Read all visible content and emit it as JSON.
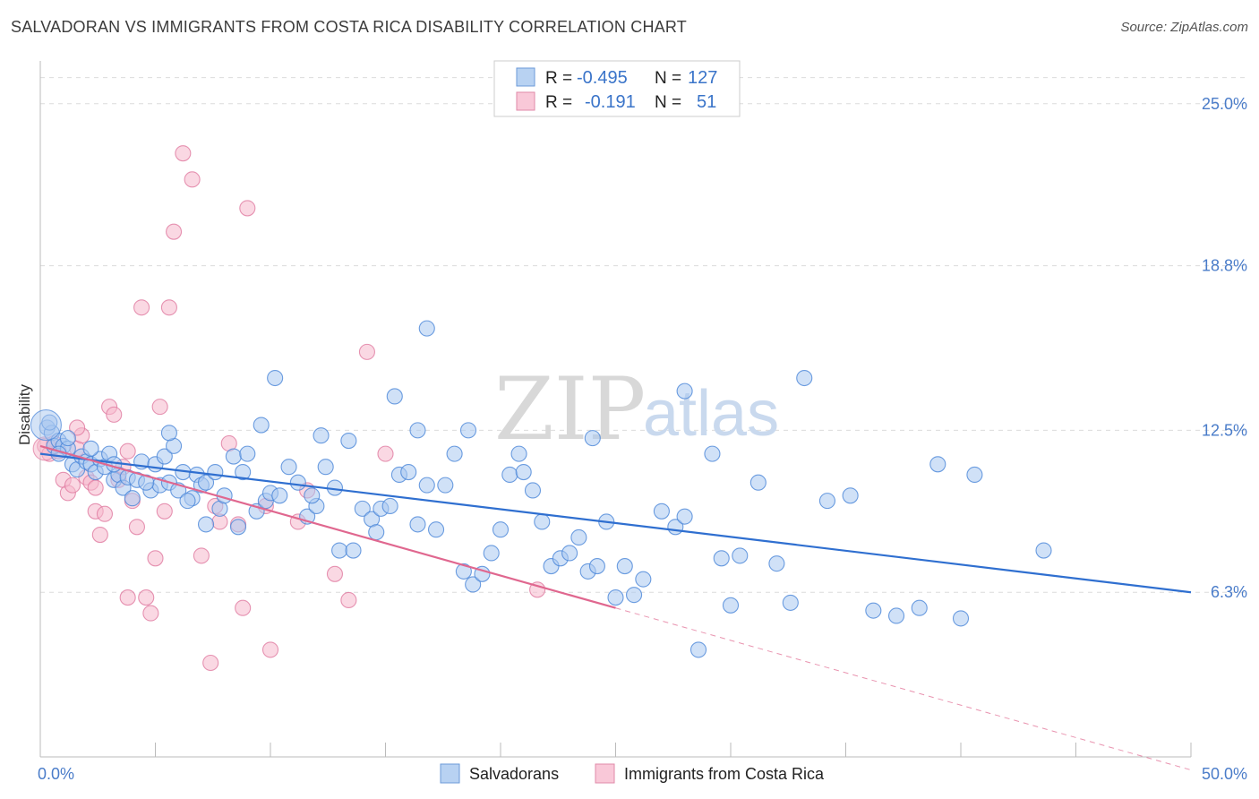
{
  "title": "SALVADORAN VS IMMIGRANTS FROM COSTA RICA DISABILITY CORRELATION CHART",
  "source": "Source: ZipAtlas.com",
  "watermark": {
    "zip": "ZIP",
    "atlas": "atlas"
  },
  "colors": {
    "blue": "#4a86d8",
    "blue_fill": "#a9c8f0",
    "pink": "#e07aa0",
    "pink_fill": "#f6b8cc",
    "blue_line": "#2f6fd0",
    "pink_line": "#e0678f",
    "grid": "#dcdcdc",
    "tick_label": "#4a7cc9"
  },
  "legend": {
    "rows": [
      {
        "r_label": "R =",
        "r_value": "-0.495",
        "n_label": "N =",
        "n_value": "127"
      },
      {
        "r_label": "R =",
        "r_value": "-0.191",
        "n_label": "N =",
        "n_value": "51"
      }
    ]
  },
  "chart_data": {
    "type": "scatter",
    "title": "SALVADORAN VS IMMIGRANTS FROM COSTA RICA DISABILITY CORRELATION CHART",
    "xlabel": "",
    "ylabel": "Disability",
    "xlim": [
      0,
      50
    ],
    "ylim": [
      0,
      26.5
    ],
    "x_tick_labels": [
      "0.0%",
      "50.0%"
    ],
    "y_ticks": [
      6.3,
      12.5,
      18.8,
      25.0
    ],
    "y_tick_labels": [
      "6.3%",
      "12.5%",
      "18.8%",
      "25.0%"
    ],
    "grid": true,
    "series": [
      {
        "name": "Salvadorans",
        "color": "blue",
        "trend": {
          "x0": 0,
          "y0": 11.6,
          "x1": 50,
          "y1": 6.3,
          "dashed_to": 50
        },
        "points": [
          [
            0.3,
            12.6
          ],
          [
            0.5,
            12.4
          ],
          [
            0.6,
            11.9
          ],
          [
            0.8,
            12.1
          ],
          [
            1.0,
            11.9
          ],
          [
            1.2,
            11.8
          ],
          [
            1.4,
            11.2
          ],
          [
            1.6,
            11.0
          ],
          [
            1.8,
            11.5
          ],
          [
            2.0,
            11.3
          ],
          [
            2.2,
            11.2
          ],
          [
            2.4,
            10.9
          ],
          [
            2.6,
            11.4
          ],
          [
            2.8,
            11.1
          ],
          [
            3.0,
            11.6
          ],
          [
            3.2,
            10.6
          ],
          [
            3.4,
            10.8
          ],
          [
            3.6,
            10.3
          ],
          [
            3.8,
            10.7
          ],
          [
            4.0,
            9.9
          ],
          [
            4.2,
            10.6
          ],
          [
            4.4,
            11.3
          ],
          [
            4.8,
            10.2
          ],
          [
            5.0,
            11.2
          ],
          [
            5.2,
            10.4
          ],
          [
            5.4,
            11.5
          ],
          [
            5.6,
            10.5
          ],
          [
            5.8,
            11.9
          ],
          [
            6.0,
            10.2
          ],
          [
            6.2,
            10.9
          ],
          [
            6.6,
            9.9
          ],
          [
            6.8,
            10.8
          ],
          [
            7.0,
            10.4
          ],
          [
            7.2,
            10.5
          ],
          [
            7.6,
            10.9
          ],
          [
            7.8,
            9.5
          ],
          [
            8.0,
            10.0
          ],
          [
            8.4,
            11.5
          ],
          [
            8.8,
            10.9
          ],
          [
            9.0,
            11.6
          ],
          [
            9.4,
            9.4
          ],
          [
            9.8,
            9.8
          ],
          [
            10.0,
            10.1
          ],
          [
            10.4,
            10.0
          ],
          [
            10.8,
            11.1
          ],
          [
            11.2,
            10.5
          ],
          [
            11.6,
            9.2
          ],
          [
            12.0,
            9.6
          ],
          [
            12.4,
            11.1
          ],
          [
            12.8,
            10.3
          ],
          [
            13.0,
            7.9
          ],
          [
            13.6,
            7.9
          ],
          [
            14.0,
            9.5
          ],
          [
            14.4,
            9.1
          ],
          [
            14.8,
            9.5
          ],
          [
            15.2,
            9.6
          ],
          [
            15.6,
            10.8
          ],
          [
            16.0,
            10.9
          ],
          [
            16.4,
            8.9
          ],
          [
            16.8,
            10.4
          ],
          [
            17.2,
            8.7
          ],
          [
            17.6,
            10.4
          ],
          [
            18.0,
            11.6
          ],
          [
            18.4,
            7.1
          ],
          [
            18.8,
            6.6
          ],
          [
            19.2,
            7.0
          ],
          [
            19.6,
            7.8
          ],
          [
            20.0,
            8.7
          ],
          [
            20.4,
            10.8
          ],
          [
            20.8,
            11.6
          ],
          [
            21.0,
            10.9
          ],
          [
            21.4,
            10.2
          ],
          [
            21.8,
            9.0
          ],
          [
            22.2,
            7.3
          ],
          [
            22.6,
            7.6
          ],
          [
            23.0,
            7.8
          ],
          [
            23.4,
            8.4
          ],
          [
            23.8,
            7.1
          ],
          [
            24.2,
            7.3
          ],
          [
            24.6,
            9.0
          ],
          [
            25.0,
            6.1
          ],
          [
            25.4,
            7.3
          ],
          [
            25.8,
            6.2
          ],
          [
            26.2,
            6.8
          ],
          [
            27.0,
            9.4
          ],
          [
            27.6,
            8.8
          ],
          [
            28.0,
            9.2
          ],
          [
            28.6,
            4.1
          ],
          [
            29.2,
            11.6
          ],
          [
            29.6,
            7.6
          ],
          [
            30.0,
            5.8
          ],
          [
            30.4,
            7.7
          ],
          [
            31.2,
            10.5
          ],
          [
            32.0,
            7.4
          ],
          [
            32.6,
            5.9
          ],
          [
            33.2,
            14.5
          ],
          [
            34.2,
            9.8
          ],
          [
            35.2,
            10.0
          ],
          [
            36.2,
            5.6
          ],
          [
            37.2,
            5.4
          ],
          [
            38.2,
            5.7
          ],
          [
            39.0,
            11.2
          ],
          [
            40.0,
            5.3
          ],
          [
            40.6,
            10.8
          ],
          [
            43.6,
            7.9
          ],
          [
            16.8,
            16.4
          ],
          [
            10.2,
            14.5
          ],
          [
            15.4,
            13.8
          ],
          [
            28.0,
            14.0
          ],
          [
            12.2,
            12.3
          ],
          [
            16.4,
            12.5
          ],
          [
            18.6,
            12.5
          ],
          [
            24.0,
            12.2
          ],
          [
            7.2,
            8.9
          ],
          [
            3.2,
            11.2
          ],
          [
            4.6,
            10.5
          ],
          [
            13.4,
            12.1
          ],
          [
            9.6,
            12.7
          ],
          [
            5.6,
            12.4
          ],
          [
            2.2,
            11.8
          ],
          [
            1.2,
            12.2
          ],
          [
            0.4,
            12.8
          ],
          [
            0.8,
            11.6
          ],
          [
            6.4,
            9.8
          ],
          [
            8.6,
            8.8
          ],
          [
            11.8,
            10.0
          ],
          [
            14.6,
            8.6
          ]
        ]
      },
      {
        "name": "Immigrants from Costa Rica",
        "color": "pink",
        "trend": {
          "x0": 0,
          "y0": 11.9,
          "x1": 25,
          "y1": 5.7,
          "dashed_to": 50
        },
        "points": [
          [
            0.2,
            11.9
          ],
          [
            0.4,
            11.6
          ],
          [
            0.6,
            12.0
          ],
          [
            0.8,
            11.7
          ],
          [
            1.0,
            10.6
          ],
          [
            1.2,
            10.1
          ],
          [
            1.4,
            10.4
          ],
          [
            1.6,
            11.8
          ],
          [
            1.8,
            12.3
          ],
          [
            2.0,
            10.7
          ],
          [
            2.2,
            10.5
          ],
          [
            2.4,
            9.4
          ],
          [
            2.6,
            8.5
          ],
          [
            2.8,
            9.3
          ],
          [
            3.0,
            13.4
          ],
          [
            3.2,
            13.1
          ],
          [
            3.4,
            10.6
          ],
          [
            3.6,
            11.1
          ],
          [
            3.8,
            11.7
          ],
          [
            4.0,
            9.8
          ],
          [
            4.2,
            8.8
          ],
          [
            4.4,
            17.2
          ],
          [
            4.6,
            6.1
          ],
          [
            4.8,
            5.5
          ],
          [
            5.0,
            7.6
          ],
          [
            5.2,
            13.4
          ],
          [
            5.4,
            9.4
          ],
          [
            5.6,
            17.2
          ],
          [
            5.8,
            20.1
          ],
          [
            6.2,
            23.1
          ],
          [
            6.6,
            22.1
          ],
          [
            7.0,
            7.7
          ],
          [
            7.4,
            3.6
          ],
          [
            7.6,
            9.6
          ],
          [
            7.8,
            9.0
          ],
          [
            8.2,
            12.0
          ],
          [
            8.6,
            8.9
          ],
          [
            8.8,
            5.7
          ],
          [
            9.0,
            21.0
          ],
          [
            9.8,
            9.6
          ],
          [
            10.0,
            4.1
          ],
          [
            11.2,
            9.0
          ],
          [
            11.6,
            10.2
          ],
          [
            12.8,
            7.0
          ],
          [
            13.4,
            6.0
          ],
          [
            14.2,
            15.5
          ],
          [
            15.0,
            11.6
          ],
          [
            21.6,
            6.4
          ],
          [
            1.6,
            12.6
          ],
          [
            2.4,
            10.3
          ],
          [
            3.8,
            6.1
          ]
        ]
      }
    ]
  },
  "bottom_legend": [
    "Salvadorans",
    "Immigrants from Costa Rica"
  ]
}
